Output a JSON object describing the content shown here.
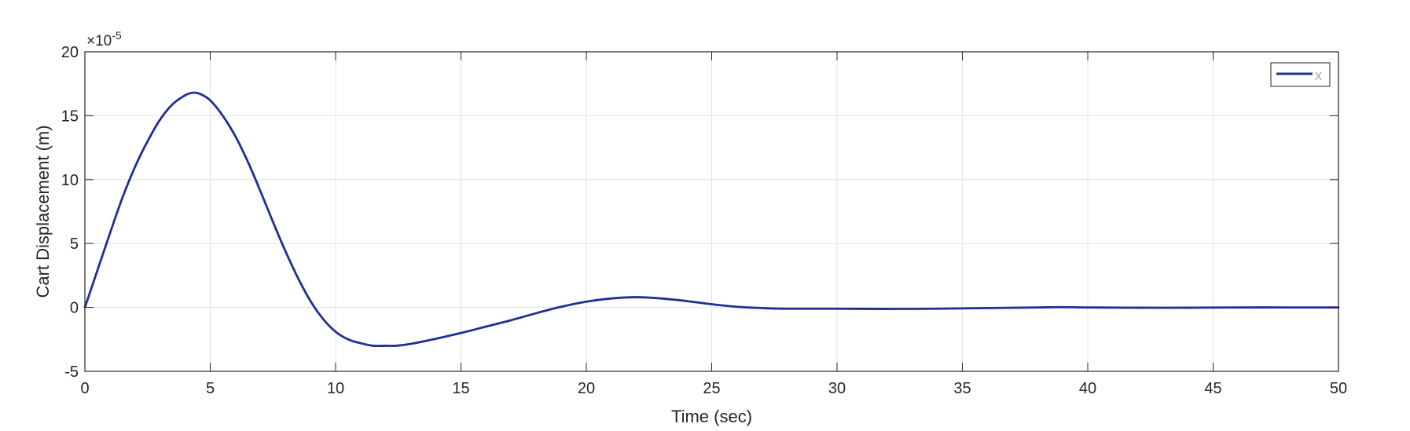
{
  "chart_data": {
    "type": "line",
    "title": "",
    "xlabel": "Time (sec)",
    "ylabel": "Cart Displacement (m)",
    "xlim": [
      0,
      50
    ],
    "ylim": [
      -5,
      20
    ],
    "x_ticks": [
      0,
      5,
      10,
      15,
      20,
      25,
      30,
      35,
      40,
      45,
      50
    ],
    "y_ticks": [
      -5,
      0,
      5,
      10,
      15,
      20
    ],
    "exponent_base": "×10",
    "exponent_power": "-5",
    "grid": true,
    "legend_position": "top-right",
    "series": [
      {
        "name": "x",
        "color": "#1f2f95",
        "x": [
          0,
          0.5,
          1,
          1.5,
          2,
          2.5,
          3,
          3.5,
          4,
          4.3,
          4.6,
          5,
          5.5,
          6,
          6.5,
          7,
          7.5,
          8,
          8.5,
          9,
          9.5,
          10,
          10.5,
          11,
          11.5,
          12,
          12.4,
          13,
          14,
          15,
          16,
          17,
          18,
          19,
          20,
          21,
          22,
          23,
          24,
          25,
          26,
          27,
          28,
          30,
          32,
          34,
          36,
          38,
          39,
          40,
          42,
          44,
          46,
          48,
          50
        ],
        "values": [
          0,
          2.9,
          5.8,
          8.6,
          11.0,
          13.0,
          14.7,
          15.9,
          16.6,
          16.8,
          16.7,
          16.2,
          15.0,
          13.4,
          11.4,
          9.1,
          6.7,
          4.4,
          2.3,
          0.5,
          -0.9,
          -1.9,
          -2.5,
          -2.8,
          -3.0,
          -3.0,
          -3.0,
          -2.85,
          -2.45,
          -2.0,
          -1.5,
          -1.0,
          -0.45,
          0.05,
          0.45,
          0.7,
          0.8,
          0.7,
          0.5,
          0.25,
          0.05,
          -0.05,
          -0.1,
          -0.1,
          -0.12,
          -0.1,
          -0.05,
          0.0,
          0.02,
          0.0,
          -0.02,
          -0.02,
          0.0,
          0.0,
          0.0
        ]
      }
    ]
  }
}
